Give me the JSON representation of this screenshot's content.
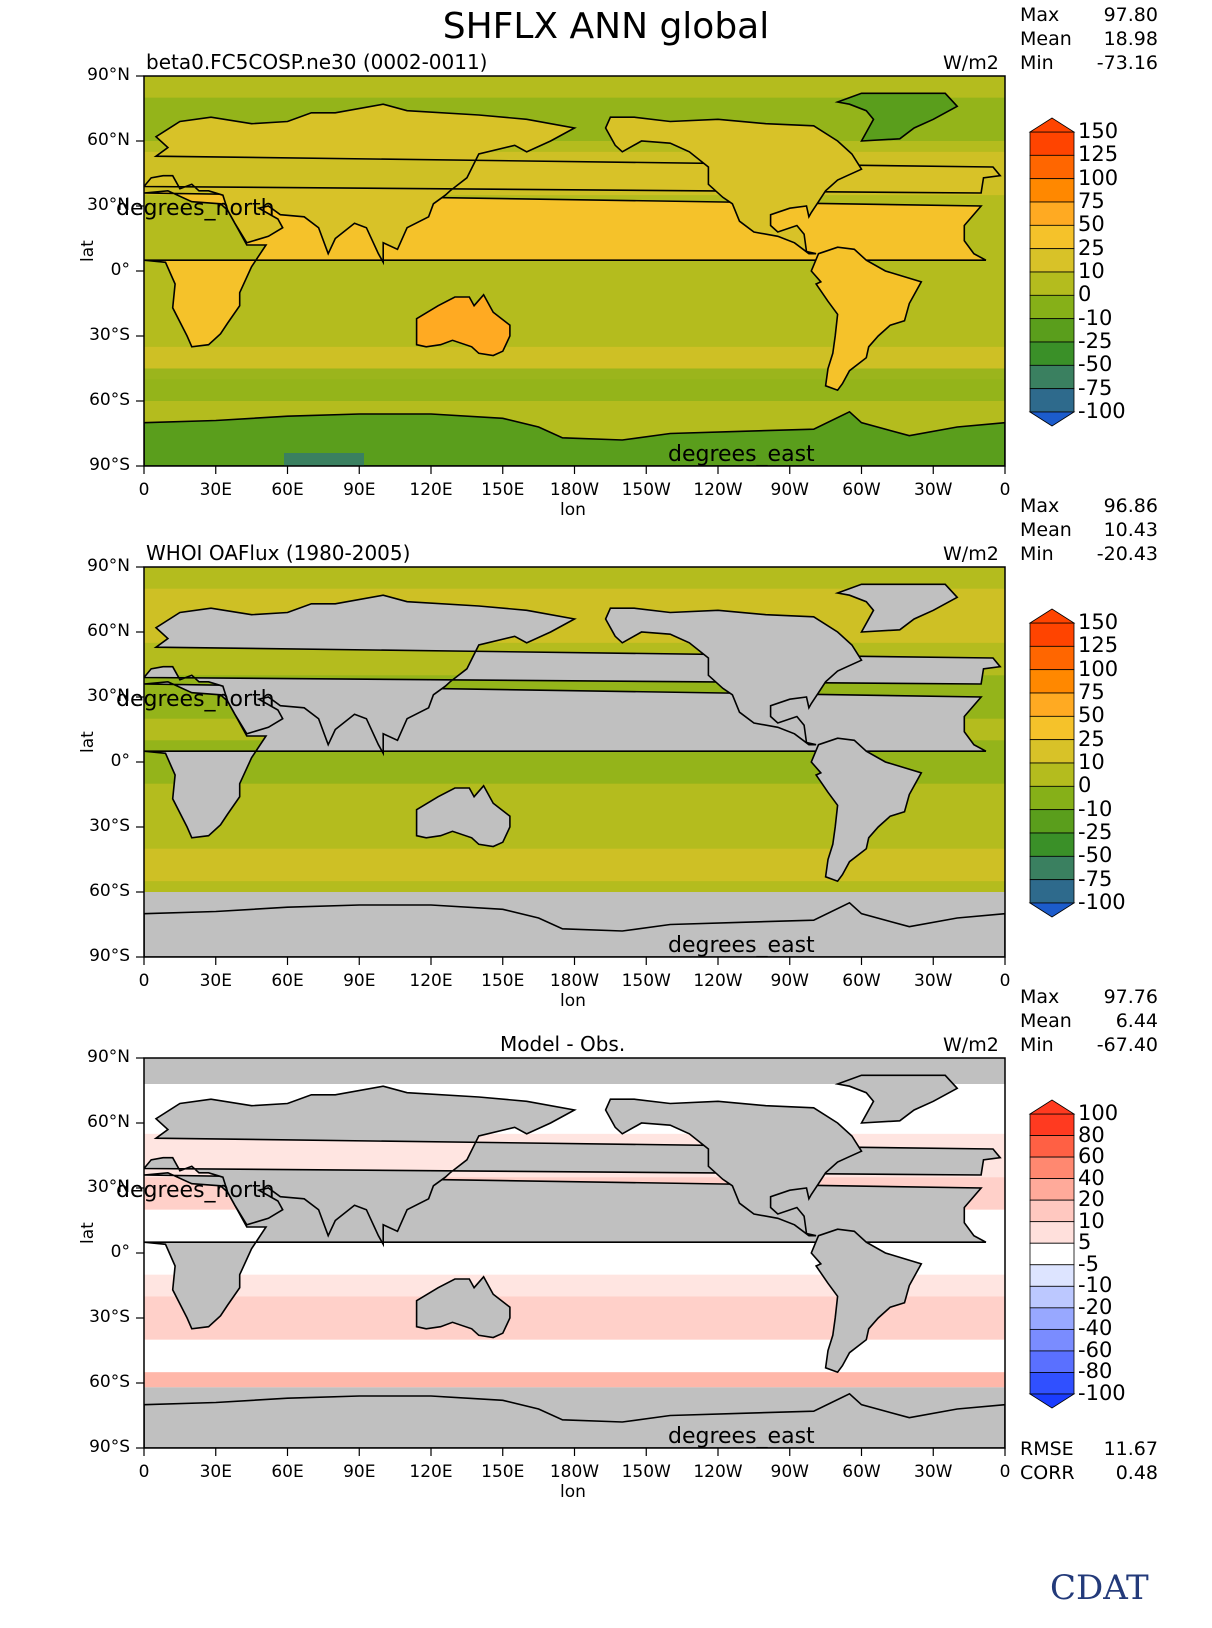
{
  "title": "SHFLX ANN global",
  "panels": [
    {
      "subtitle": "beta0.FC5COSP.ne30 (0002-0011)",
      "units": "W/m2",
      "stats": {
        "max_label": "Max",
        "max": "97.80",
        "mean_label": "Mean",
        "mean": "18.98",
        "min_label": "Min",
        "min": "-73.16"
      },
      "colorbar": [
        "150",
        "125",
        "100",
        "75",
        "50",
        "25",
        "10",
        "0",
        "-10",
        "-25",
        "-50",
        "-75",
        "-100"
      ],
      "ylabel": "lat",
      "xlabel": "lon",
      "lat_label_overlay": "degrees_north",
      "lon_label_overlay": "degrees_east"
    },
    {
      "subtitle": "WHOI OAFlux (1980-2005)",
      "units": "W/m2",
      "stats": {
        "max_label": "Max",
        "max": "96.86",
        "mean_label": "Mean",
        "mean": "10.43",
        "min_label": "Min",
        "min": "-20.43"
      },
      "colorbar": [
        "150",
        "125",
        "100",
        "75",
        "50",
        "25",
        "10",
        "0",
        "-10",
        "-25",
        "-50",
        "-75",
        "-100"
      ],
      "ylabel": "lat",
      "xlabel": "lon",
      "lat_label_overlay": "degrees_north",
      "lon_label_overlay": "degrees_east"
    },
    {
      "subtitle": "Model - Obs.",
      "units": "W/m2",
      "stats": {
        "max_label": "Max",
        "max": "97.76",
        "mean_label": "Mean",
        "mean": "6.44",
        "min_label": "Min",
        "min": "-67.40"
      },
      "colorbar": [
        "100",
        "80",
        "60",
        "40",
        "20",
        "10",
        "5",
        "-5",
        "-10",
        "-20",
        "-40",
        "-60",
        "-80",
        "-100"
      ],
      "ylabel": "lat",
      "xlabel": "lon",
      "lat_label_overlay": "degrees_north",
      "lon_label_overlay": "degrees_east",
      "rmse_label": "RMSE",
      "rmse": "11.67",
      "corr_label": "CORR",
      "corr": "0.48"
    }
  ],
  "yticks": [
    "90°N",
    "60°N",
    "30°N",
    "0°",
    "30°S",
    "60°S",
    "90°S"
  ],
  "xticks": [
    "0",
    "30E",
    "60E",
    "90E",
    "120E",
    "150E",
    "180W",
    "150W",
    "120W",
    "90W",
    "60W",
    "30W",
    "0"
  ],
  "logo": "CDAT",
  "colors": {
    "land_mask": "#c0c0c0",
    "full_scale": [
      "#ff4400",
      "#ff6600",
      "#ff8800",
      "#ffaa22",
      "#f5c22a",
      "#d8c228",
      "#b4bc1e",
      "#86b018",
      "#5a9e1c",
      "#3a9028",
      "#3a8060",
      "#2e6a8c",
      "#1c5ccc"
    ],
    "diff_scale": [
      "#ff3a20",
      "#ff6044",
      "#ff8870",
      "#ffaa9a",
      "#ffc8c0",
      "#ffe0dc",
      "#ffffff",
      "#dde4ff",
      "#bcc8ff",
      "#98a8ff",
      "#7a8cff",
      "#5a70ff",
      "#3050ff",
      "#1a3cff"
    ]
  },
  "chart_data": [
    {
      "type": "heatmap",
      "title": "SHFLX ANN global",
      "subtitle": "beta0.FC5COSP.ne30 (0002-0011)",
      "xlabel": "lon",
      "ylabel": "lat",
      "units": "W/m2",
      "xlim": [
        0,
        360
      ],
      "ylim": [
        -90,
        90
      ],
      "x_ticks": [
        "0",
        "30E",
        "60E",
        "90E",
        "120E",
        "150E",
        "180W",
        "150W",
        "120W",
        "90W",
        "60W",
        "30W",
        "0"
      ],
      "y_ticks": [
        "90°N",
        "60°N",
        "30°N",
        "0°",
        "30°S",
        "60°S",
        "90°S"
      ],
      "levels": [
        -100,
        -75,
        -50,
        -25,
        -10,
        0,
        10,
        25,
        50,
        75,
        100,
        125,
        150
      ],
      "stats": {
        "max": 97.8,
        "mean": 18.98,
        "min": -73.16
      }
    },
    {
      "type": "heatmap",
      "subtitle": "WHOI OAFlux (1980-2005)",
      "xlabel": "lon",
      "ylabel": "lat",
      "units": "W/m2",
      "xlim": [
        0,
        360
      ],
      "ylim": [
        -90,
        90
      ],
      "levels": [
        -100,
        -75,
        -50,
        -25,
        -10,
        0,
        10,
        25,
        50,
        75,
        100,
        125,
        150
      ],
      "stats": {
        "max": 96.86,
        "mean": 10.43,
        "min": -20.43
      }
    },
    {
      "type": "heatmap",
      "subtitle": "Model - Obs.",
      "xlabel": "lon",
      "ylabel": "lat",
      "units": "W/m2",
      "xlim": [
        0,
        360
      ],
      "ylim": [
        -90,
        90
      ],
      "levels": [
        -100,
        -80,
        -60,
        -40,
        -20,
        -10,
        -5,
        5,
        10,
        20,
        40,
        60,
        80,
        100
      ],
      "stats": {
        "max": 97.76,
        "mean": 6.44,
        "min": -67.4,
        "rmse": 11.67,
        "corr": 0.48
      }
    }
  ]
}
